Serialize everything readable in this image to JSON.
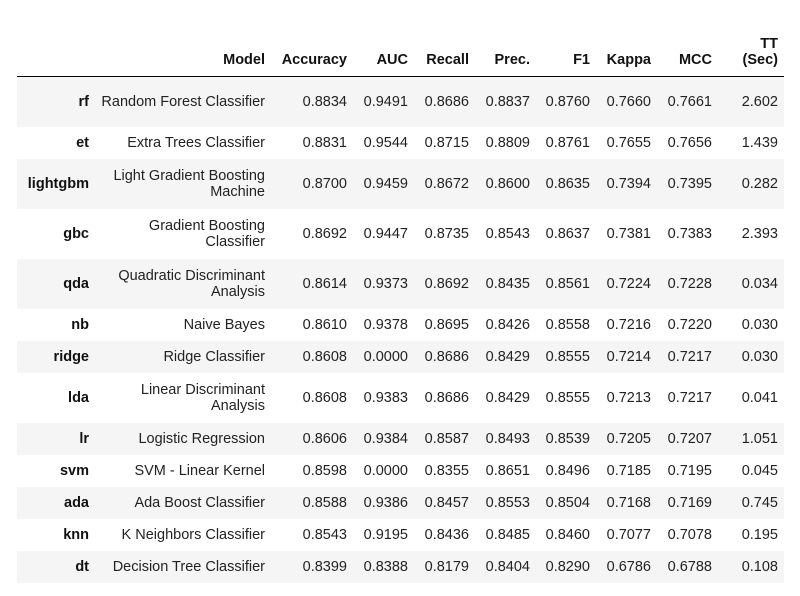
{
  "table": {
    "headers": {
      "index": "",
      "model": "Model",
      "accuracy": "Accuracy",
      "auc": "AUC",
      "recall": "Recall",
      "prec": "Prec.",
      "f1": "F1",
      "kappa": "Kappa",
      "mcc": "MCC",
      "tt": "TT (Sec)"
    },
    "rows": [
      {
        "id": "rf",
        "model": "Random Forest Classifier",
        "accuracy": "0.8834",
        "auc": "0.9491",
        "recall": "0.8686",
        "prec": "0.8837",
        "f1": "0.8760",
        "kappa": "0.7660",
        "mcc": "0.7661",
        "tt": "2.602"
      },
      {
        "id": "et",
        "model": "Extra Trees Classifier",
        "accuracy": "0.8831",
        "auc": "0.9544",
        "recall": "0.8715",
        "prec": "0.8809",
        "f1": "0.8761",
        "kappa": "0.7655",
        "mcc": "0.7656",
        "tt": "1.439"
      },
      {
        "id": "lightgbm",
        "model": "Light Gradient Boosting Machine",
        "accuracy": "0.8700",
        "auc": "0.9459",
        "recall": "0.8672",
        "prec": "0.8600",
        "f1": "0.8635",
        "kappa": "0.7394",
        "mcc": "0.7395",
        "tt": "0.282"
      },
      {
        "id": "gbc",
        "model": "Gradient Boosting Classifier",
        "accuracy": "0.8692",
        "auc": "0.9447",
        "recall": "0.8735",
        "prec": "0.8543",
        "f1": "0.8637",
        "kappa": "0.7381",
        "mcc": "0.7383",
        "tt": "2.393"
      },
      {
        "id": "qda",
        "model": "Quadratic Discriminant Analysis",
        "accuracy": "0.8614",
        "auc": "0.9373",
        "recall": "0.8692",
        "prec": "0.8435",
        "f1": "0.8561",
        "kappa": "0.7224",
        "mcc": "0.7228",
        "tt": "0.034"
      },
      {
        "id": "nb",
        "model": "Naive Bayes",
        "accuracy": "0.8610",
        "auc": "0.9378",
        "recall": "0.8695",
        "prec": "0.8426",
        "f1": "0.8558",
        "kappa": "0.7216",
        "mcc": "0.7220",
        "tt": "0.030"
      },
      {
        "id": "ridge",
        "model": "Ridge Classifier",
        "accuracy": "0.8608",
        "auc": "0.0000",
        "recall": "0.8686",
        "prec": "0.8429",
        "f1": "0.8555",
        "kappa": "0.7214",
        "mcc": "0.7217",
        "tt": "0.030"
      },
      {
        "id": "lda",
        "model": "Linear Discriminant Analysis",
        "accuracy": "0.8608",
        "auc": "0.9383",
        "recall": "0.8686",
        "prec": "0.8429",
        "f1": "0.8555",
        "kappa": "0.7213",
        "mcc": "0.7217",
        "tt": "0.041"
      },
      {
        "id": "lr",
        "model": "Logistic Regression",
        "accuracy": "0.8606",
        "auc": "0.9384",
        "recall": "0.8587",
        "prec": "0.8493",
        "f1": "0.8539",
        "kappa": "0.7205",
        "mcc": "0.7207",
        "tt": "1.051"
      },
      {
        "id": "svm",
        "model": "SVM - Linear Kernel",
        "accuracy": "0.8598",
        "auc": "0.0000",
        "recall": "0.8355",
        "prec": "0.8651",
        "f1": "0.8496",
        "kappa": "0.7185",
        "mcc": "0.7195",
        "tt": "0.045"
      },
      {
        "id": "ada",
        "model": "Ada Boost Classifier",
        "accuracy": "0.8588",
        "auc": "0.9386",
        "recall": "0.8457",
        "prec": "0.8553",
        "f1": "0.8504",
        "kappa": "0.7168",
        "mcc": "0.7169",
        "tt": "0.745"
      },
      {
        "id": "knn",
        "model": "K Neighbors Classifier",
        "accuracy": "0.8543",
        "auc": "0.9195",
        "recall": "0.8436",
        "prec": "0.8485",
        "f1": "0.8460",
        "kappa": "0.7077",
        "mcc": "0.7078",
        "tt": "0.195"
      },
      {
        "id": "dt",
        "model": "Decision Tree Classifier",
        "accuracy": "0.8399",
        "auc": "0.8388",
        "recall": "0.8179",
        "prec": "0.8404",
        "f1": "0.8290",
        "kappa": "0.6786",
        "mcc": "0.6788",
        "tt": "0.108"
      }
    ]
  }
}
